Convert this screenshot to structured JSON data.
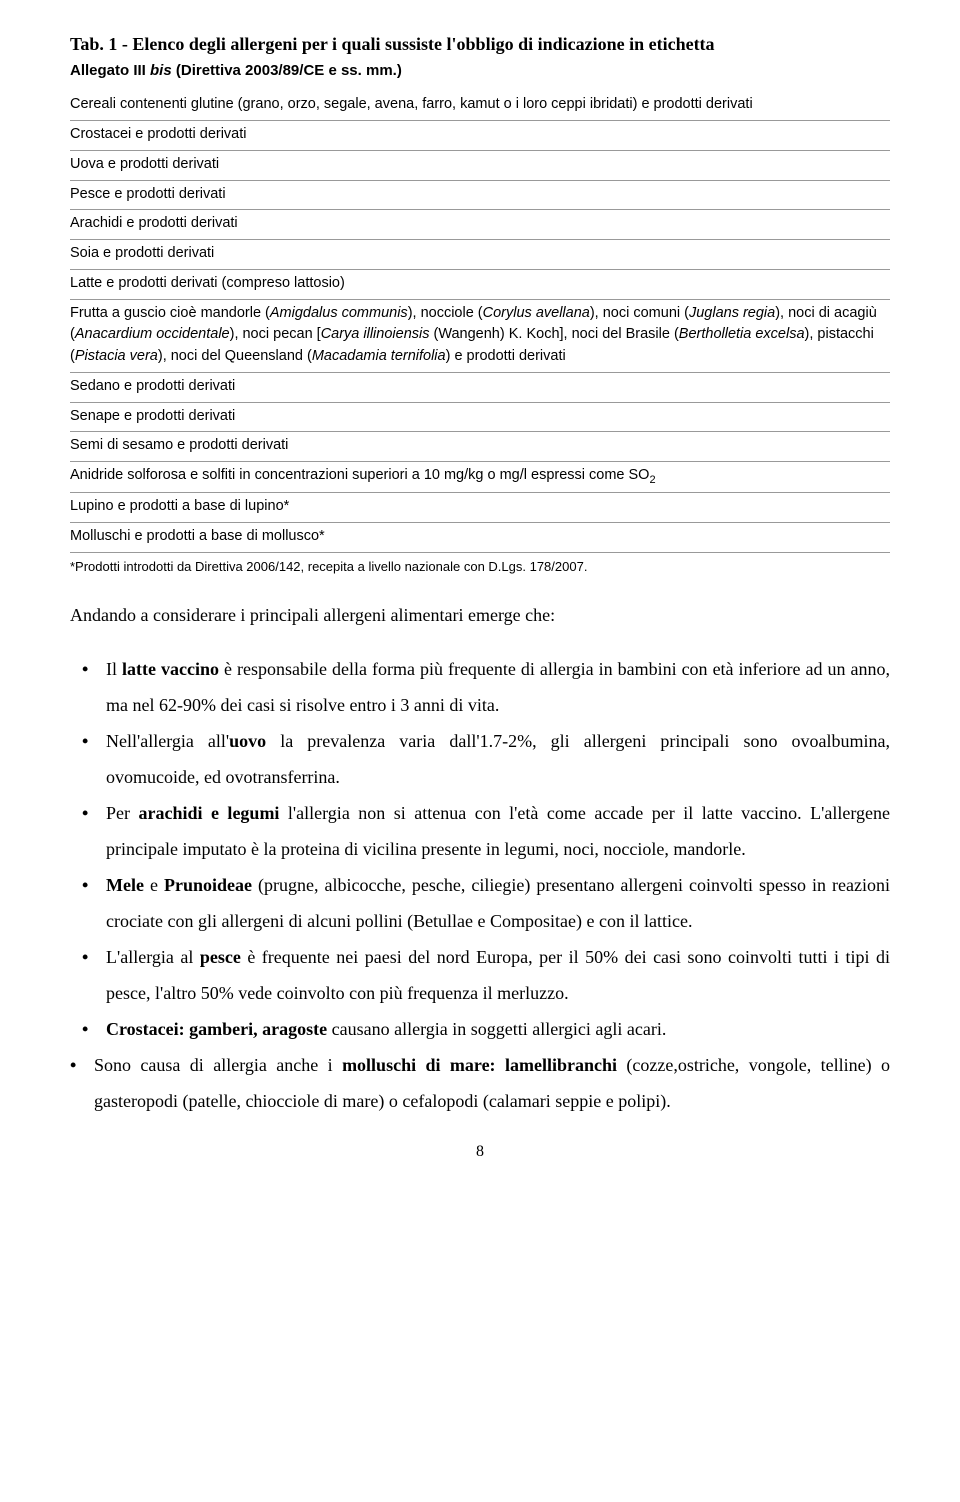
{
  "title": "Tab. 1 - Elenco degli allergeni per i quali sussiste l'obbligo di indicazione in etichetta",
  "subtitle_prefix": "Allegato III ",
  "subtitle_italic": "bis",
  "subtitle_suffix": " (Direttiva 2003/89/CE e ss. mm.)",
  "allergens": [
    "Cereali contenenti glutine (grano, orzo, segale, avena, farro, kamut o i loro ceppi ibridati) e prodotti derivati",
    "Crostacei e prodotti derivati",
    "Uova e prodotti derivati",
    "Pesce e prodotti derivati",
    "Arachidi e prodotti derivati",
    "Soia e prodotti derivati",
    "Latte e prodotti derivati (compreso lattosio)",
    "",
    "Sedano e prodotti derivati",
    "Senape e prodotti derivati",
    "Semi di sesamo e prodotti derivati",
    "",
    "Lupino e prodotti a base di lupino*",
    "Molluschi e prodotti a base di mollusco*"
  ],
  "nuts_row": {
    "p1": "Frutta a guscio cioè mandorle (",
    "i1": "Amigdalus communis",
    "p2": "), nocciole (",
    "i2": "Corylus avellana",
    "p3": "), noci comuni (",
    "i3": "Juglans regia",
    "p4": "), noci di acagiù (",
    "i4": "Anacardium occidentale",
    "p5": "), noci pecan [",
    "i5": "Carya illinoiensis",
    "p6": " (Wangenh) K. Koch], noci del Brasile (",
    "i6": "Bertholletia excelsa",
    "p7": "), pistacchi (",
    "i7": "Pistacia vera",
    "p8": "), noci del Queensland (",
    "i8": "Macadamia ternifolia",
    "p9": ") e prodotti derivati"
  },
  "so2_row": {
    "p1": "Anidride solforosa e solfiti in concentrazioni superiori a 10 mg/kg o mg/l espressi come SO",
    "sub": "2"
  },
  "footnote": "*Prodotti introdotti da Direttiva 2006/142, recepita a livello nazionale con D.Lgs. 178/2007.",
  "intro": "Andando a considerare i principali allergeni alimentari emerge che:",
  "bullets": {
    "b0_p1": "Il ",
    "b0_s1": "latte vaccino",
    "b0_p2": " è responsabile della forma più frequente di allergia in bambini con età inferiore ad un anno, ma nel 62-90% dei casi si risolve entro i 3 anni di vita.",
    "b1_p1": "Nell'allergia all'",
    "b1_s1": "uovo",
    "b1_p2": " la prevalenza varia dall'1.7-2%, gli allergeni principali sono ovoalbumina, ovomucoide, ed ovotransferrina.",
    "b2_p1": "Per ",
    "b2_s1": "arachidi e legumi",
    "b2_p2": " l'allergia non si attenua con l'età come accade per il latte vaccino. L'allergene principale imputato è la proteina di vicilina presente in legumi, noci, nocciole, mandorle.",
    "b3_s1": "Mele",
    "b3_p1": " e ",
    "b3_s2": "Prunoideae",
    "b3_p2": " (prugne, albicocche, pesche, ciliegie) presentano allergeni coinvolti spesso in reazioni crociate con gli allergeni di alcuni pollini (Betullae e Compositae) e con il lattice.",
    "b4_p1": "L'allergia al ",
    "b4_s1": "pesce",
    "b4_p2": " è frequente nei paesi del nord Europa, per il 50% dei casi sono coinvolti tutti i tipi di pesce, l'altro 50% vede coinvolto con più frequenza il merluzzo.",
    "b5_s1": " Crostacei: gamberi, aragoste",
    "b5_p1": " causano allergia in soggetti allergici agli acari.",
    "b6_p1": "Sono causa di allergia anche i ",
    "b6_s1": "molluschi di mare: lamellibranchi",
    "b6_p2": " (cozze,ostriche, vongole, telline) o gasteropodi (patelle, chiocciole di mare) o cefalopodi (calamari seppie e polipi)."
  },
  "page_number": "8"
}
